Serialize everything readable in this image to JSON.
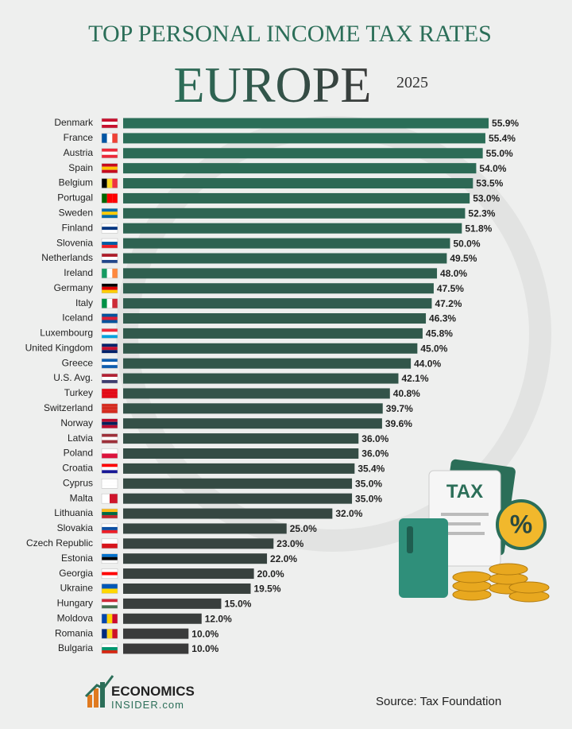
{
  "chart_data": {
    "type": "barh",
    "title": "TOP PERSONAL INCOME TAX RATES",
    "subtitle": "EUROPE",
    "year": "2025",
    "source": "Source: Tax Foundation",
    "logo": {
      "line1": "ECONOMICS",
      "line2": "INSIDER.com"
    },
    "illustration": {
      "label": "TAX",
      "symbol": "%"
    },
    "categories": [
      "Denmark",
      "France",
      "Austria",
      "Spain",
      "Belgium",
      "Portugal",
      "Sweden",
      "Finland",
      "Slovenia",
      "Netherlands",
      "Ireland",
      "Germany",
      "Italy",
      "Iceland",
      "Luxembourg",
      "United Kingdom",
      "Greece",
      "U.S. Avg.",
      "Turkey",
      "Switzerland",
      "Norway",
      "Latvia",
      "Poland",
      "Croatia",
      "Cyprus",
      "Malta",
      "Lithuania",
      "Slovakia",
      "Czech Republic",
      "Estonia",
      "Georgia",
      "Ukraine",
      "Hungary",
      "Moldova",
      "Romania",
      "Bulgaria"
    ],
    "values": [
      55.9,
      55.4,
      55.0,
      54.0,
      53.5,
      53.0,
      52.3,
      51.8,
      50.0,
      49.5,
      48.0,
      47.5,
      47.2,
      46.3,
      45.8,
      45.0,
      44.0,
      42.1,
      40.8,
      39.7,
      39.6,
      36.0,
      36.0,
      35.4,
      35.0,
      35.0,
      32.0,
      25.0,
      23.0,
      22.0,
      20.0,
      19.5,
      15.0,
      12.0,
      10.0,
      10.0
    ],
    "value_labels": [
      "55.9%",
      "55.4%",
      "55.0%",
      "54.0%",
      "53.5%",
      "53.0%",
      "52.3%",
      "51.8%",
      "50.0%",
      "49.5%",
      "48.0%",
      "47.5%",
      "47.2%",
      "46.3%",
      "45.8%",
      "45.0%",
      "44.0%",
      "42.1%",
      "40.8%",
      "39.7%",
      "39.6%",
      "36.0%",
      "36.0%",
      "35.4%",
      "35.0%",
      "35.0%",
      "32.0%",
      "25.0%",
      "23.0%",
      "22.0%",
      "20.0%",
      "19.5%",
      "15.0%",
      "12.0%",
      "10.0%",
      "10.0%"
    ],
    "gradient": [
      "#2b6e58",
      "#3a3a3a"
    ]
  }
}
